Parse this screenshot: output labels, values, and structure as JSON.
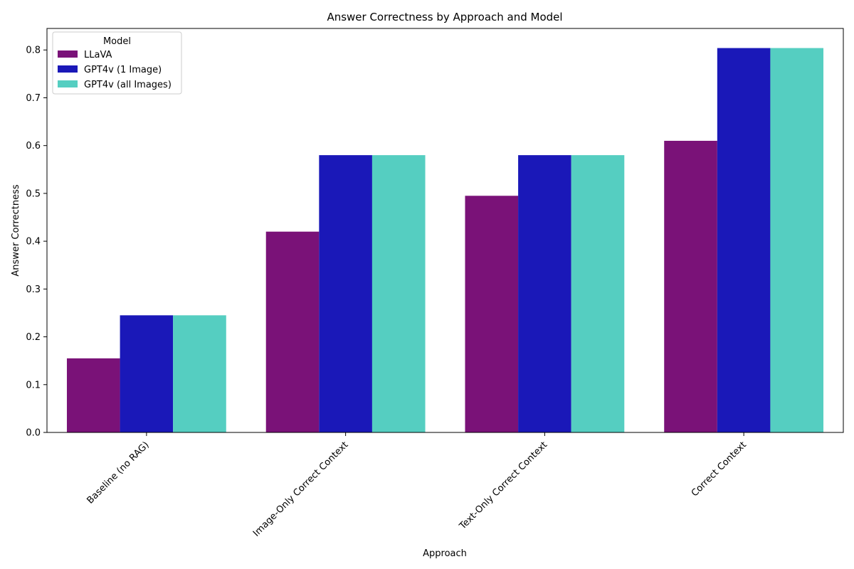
{
  "chart_data": {
    "type": "bar",
    "title": "Answer Correctness by Approach and Model",
    "xlabel": "Approach",
    "ylabel": "Answer Correctness",
    "categories": [
      "Baseline (no RAG)",
      "Image-Only Correct Context",
      "Text-Only Correct Context",
      "Correct Context"
    ],
    "series": [
      {
        "name": "LLaVA",
        "color": "#7a1278",
        "values": [
          0.155,
          0.42,
          0.495,
          0.61
        ]
      },
      {
        "name": "GPT4v (1 Image)",
        "color": "#1a18b8",
        "values": [
          0.245,
          0.58,
          0.58,
          0.804
        ]
      },
      {
        "name": "GPT4v (all Images)",
        "color": "#55cec1",
        "values": [
          0.245,
          0.58,
          0.58,
          0.804
        ]
      }
    ],
    "ylim": [
      0,
      0.845
    ],
    "yticks": [
      0.0,
      0.1,
      0.2,
      0.3,
      0.4,
      0.5,
      0.6,
      0.7,
      0.8
    ],
    "ytick_labels": [
      "0.0",
      "0.1",
      "0.2",
      "0.3",
      "0.4",
      "0.5",
      "0.6",
      "0.7",
      "0.8"
    ],
    "legend": {
      "title": "Model",
      "position": "top-left"
    },
    "grid": false
  }
}
